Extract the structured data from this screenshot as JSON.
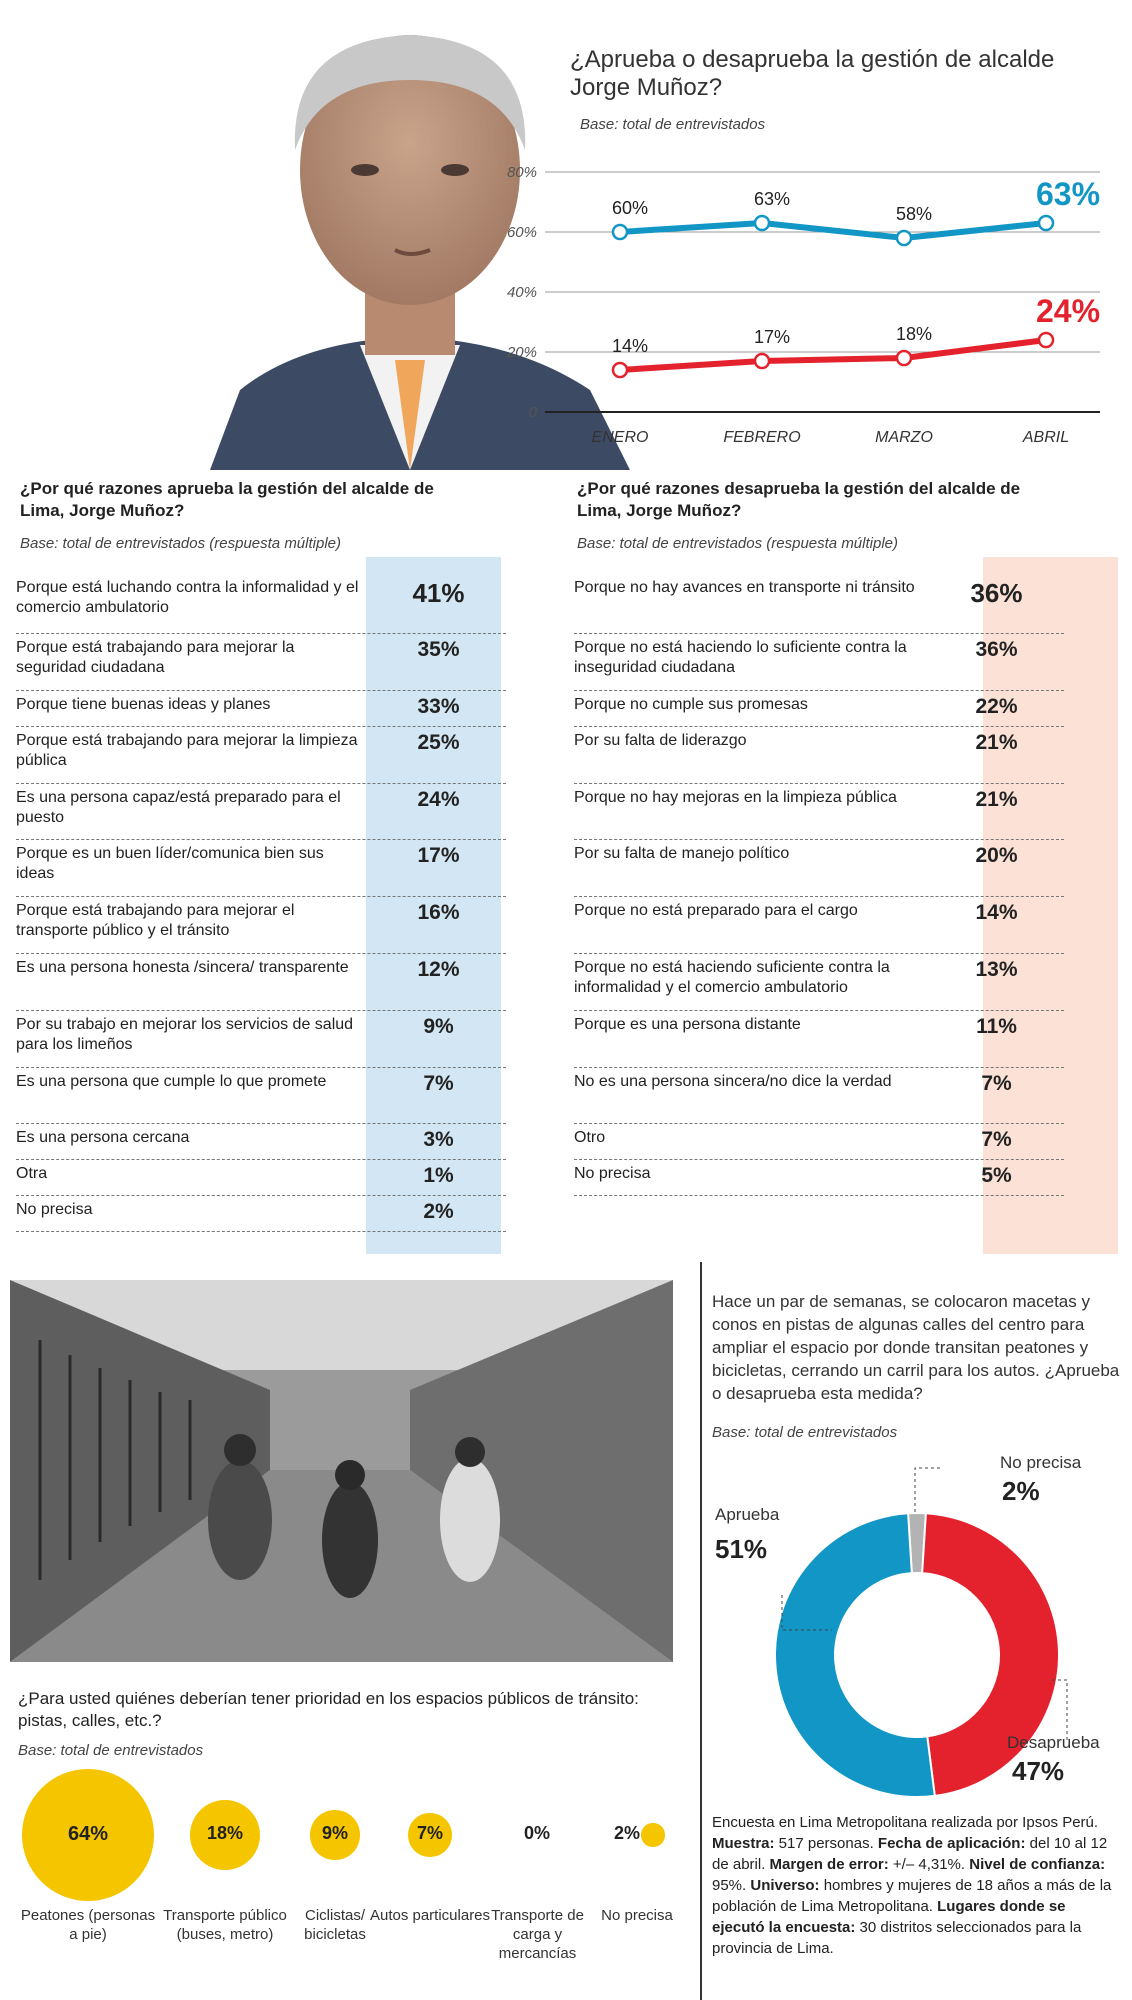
{
  "colors": {
    "approve": "#1296c5",
    "disapprove": "#e3222d",
    "uncertain": "#b3b3b3",
    "bubble": "#f5c500",
    "blue_bg": "#d3e6f3",
    "peach_bg": "#fbe1d6"
  },
  "line_chart": {
    "question": "¿Aprueba o desaprueba la gestión de alcalde Jorge Muñoz?",
    "base": "Base: total de entrevistados",
    "y_ticks": [
      "80%",
      "60%",
      "40%",
      "20%",
      "0"
    ]
  },
  "approve_section": {
    "title_pre": "¿Por qué razones ",
    "title_em": "aprueba",
    "title_post": " la gestión del alcalde de Lima, Jorge Muñoz?",
    "base": "Base: total de entrevistados (respuesta múltiple)",
    "rows": [
      {
        "text": "Porque está luchando contra la informalidad y el comercio ambulatorio",
        "value": "41%"
      },
      {
        "text": "Porque está trabajando para mejorar la seguridad ciudadana",
        "value": "35%"
      },
      {
        "text": "Porque tiene buenas ideas y planes",
        "value": "33%"
      },
      {
        "text": "Porque está trabajando para mejorar la limpieza pública",
        "value": "25%"
      },
      {
        "text": "Es una persona capaz/está preparado para el puesto",
        "value": "24%"
      },
      {
        "text": "Porque es un buen líder/comunica bien sus ideas",
        "value": "17%"
      },
      {
        "text": "Porque está trabajando para mejorar el transporte público y el tránsito",
        "value": "16%"
      },
      {
        "text": "Es una persona honesta /sincera/ transparente",
        "value": "12%"
      },
      {
        "text": "Por su trabajo en mejorar los servicios de salud para los limeños",
        "value": "9%"
      },
      {
        "text": "Es una persona que cumple lo que promete",
        "value": "7%"
      },
      {
        "text": "Es una persona cercana",
        "value": "3%"
      },
      {
        "text": "Otra",
        "value": "1%"
      },
      {
        "text": "No precisa",
        "value": "2%"
      }
    ]
  },
  "disapprove_section": {
    "title_pre": "¿Por qué razones ",
    "title_em": "desaprueba",
    "title_post": " la gestión del alcalde de Lima, Jorge Muñoz?",
    "base": "Base: total de entrevistados (respuesta múltiple)",
    "rows": [
      {
        "text": "Porque no hay avances en transporte ni tránsito",
        "value": "36%"
      },
      {
        "text": "Porque no está haciendo lo suficiente contra la inseguridad ciudadana",
        "value": "36%"
      },
      {
        "text": "Porque no cumple sus promesas",
        "value": "22%"
      },
      {
        "text": "Por su falta de liderazgo",
        "value": "21%"
      },
      {
        "text": "Porque no hay mejoras en la limpieza pública",
        "value": "21%"
      },
      {
        "text": "Por su falta de manejo político",
        "value": "20%"
      },
      {
        "text": "Porque no está preparado para el cargo",
        "value": "14%"
      },
      {
        "text": "Porque no está haciendo suficiente contra la informalidad y el comercio ambulatorio",
        "value": "13%"
      },
      {
        "text": "Porque es una persona distante",
        "value": "11%"
      },
      {
        "text": "No es una persona sincera/no dice la verdad",
        "value": "7%"
      },
      {
        "text": "Otro",
        "value": "7%"
      },
      {
        "text": "No precisa",
        "value": "5%"
      }
    ]
  },
  "priority_section": {
    "question": "¿Para usted quiénes deberían tener prioridad en los espacios públicos de tránsito: pistas, calles, etc.?",
    "base": "Base: total de entrevistados"
  },
  "measure_section": {
    "question": "Hace un par de semanas, se colocaron macetas y conos en pistas de algunas calles del centro para ampliar el espacio por donde transitan peatones y bicicletas, cerrando un carril para los autos. ¿Aprueba o desaprueba esta medida?",
    "base": "Base: total de entrevistados"
  },
  "methodology": {
    "intro": "Encuesta en Lima Metropolitana realizada por Ipsos Perú. ",
    "muestra_label": "Muestra:",
    "muestra": " 517 personas. ",
    "fecha_label": "Fecha de aplicación:",
    "fecha": " del 10 al 12 de abril. ",
    "margen_label": "Margen de error:",
    "margen": " +/– 4,31%. ",
    "nivel_label": "Nivel de confianza:",
    "nivel": " 95%. ",
    "universo_label": "Universo:",
    "universo": " hombres y mujeres de 18 años a más de la población de Lima Metropolitana. ",
    "lugares_label": "Lugares donde se ejecutó la encuesta:",
    "lugares": " 30 distritos seleccionados para la provincia de Lima."
  },
  "chart_data": [
    {
      "type": "line",
      "title": "¿Aprueba o desaprueba la gestión de alcalde Jorge Muñoz?",
      "categories": [
        "ENERO",
        "FEBRERO",
        "MARZO",
        "ABRIL"
      ],
      "ylim": [
        0,
        80
      ],
      "series": [
        {
          "name": "Aprueba",
          "values": [
            60,
            63,
            58,
            63
          ],
          "labels": [
            "60%",
            "63%",
            "58%",
            "63%"
          ]
        },
        {
          "name": "Desaprueba",
          "values": [
            14,
            17,
            18,
            24
          ],
          "labels": [
            "14%",
            "17%",
            "18%",
            "24%"
          ]
        }
      ]
    },
    {
      "type": "bubble",
      "title": "¿Para usted quiénes deberían tener prioridad en los espacios públicos de tránsito: pistas, calles, etc.?",
      "categories": [
        "Peatones (personas a pie)",
        "Transporte público (buses, metro)",
        "Ciclistas/ bicicletas",
        "Autos particulares",
        "Transporte de carga y mercancías",
        "No precisa"
      ],
      "values": [
        64,
        18,
        9,
        7,
        0,
        2
      ],
      "labels": [
        "64%",
        "18%",
        "9%",
        "7%",
        "0%",
        "2%"
      ]
    },
    {
      "type": "pie",
      "title": "¿Aprueba o desaprueba esta medida?",
      "categories": [
        "Aprueba",
        "Desaprueba",
        "No precisa"
      ],
      "values": [
        51,
        47,
        2
      ],
      "labels": [
        "51%",
        "47%",
        "2%"
      ]
    }
  ]
}
